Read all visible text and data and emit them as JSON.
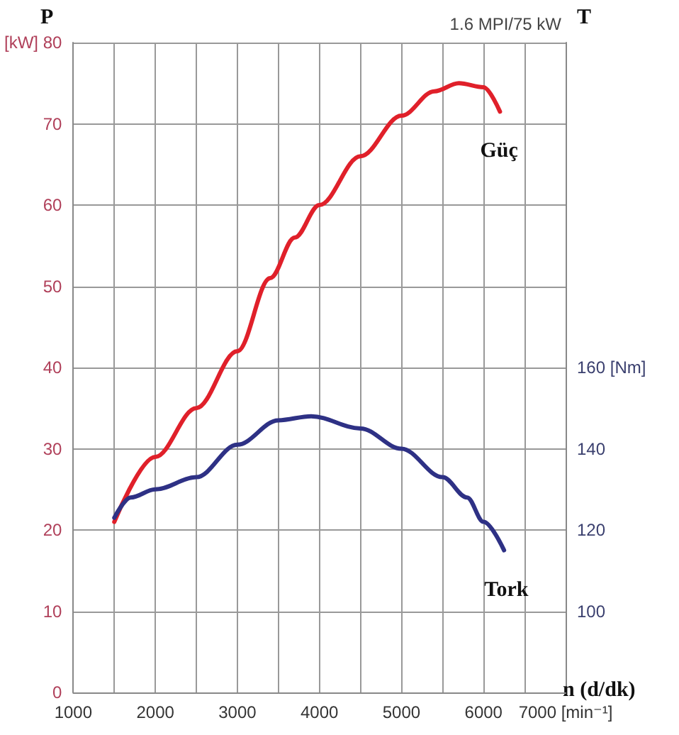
{
  "chart_data": {
    "type": "line",
    "title": "1.6 MPI/75 kW",
    "xlabel": "n (d/dk)",
    "ylabel": "P",
    "y2label": "T",
    "xlim": [
      1000,
      7000
    ],
    "xticks": [
      1000,
      {
        "value": 1500,
        "label": null
      },
      2000,
      {
        "value": 2500,
        "label": null
      },
      3000,
      {
        "value": 3500,
        "label": null
      },
      4000,
      {
        "value": 4500,
        "label": null
      },
      5000,
      {
        "value": 5500,
        "label": null
      },
      6000,
      {
        "value": 6500,
        "label": null
      },
      {
        "value": 7000,
        "label": "7000 [min⁻¹]"
      }
    ],
    "ylim": [
      0,
      80
    ],
    "yticks": [
      0,
      10,
      20,
      30,
      40,
      50,
      60,
      70,
      {
        "value": 80,
        "label": "[kW] 80"
      }
    ],
    "y2lim": [
      80,
      240
    ],
    "y2ticks": [
      100,
      120,
      140,
      {
        "value": 160,
        "label": "160 [Nm]"
      }
    ],
    "grid": true,
    "legend": false,
    "marker": "none",
    "line_style": "solid",
    "series": [
      {
        "name": "Güç",
        "color": "#e0202a",
        "x": [
          1500,
          2000,
          2500,
          3000,
          3400,
          3700,
          4000,
          4500,
          5000,
          5400,
          5700,
          6000,
          6200
        ],
        "values": [
          21,
          29,
          35,
          42,
          51,
          56,
          60,
          66,
          71,
          74,
          75,
          74.5,
          71.5
        ]
      },
      {
        "name": "Tork",
        "color": "#2e3185",
        "axis": "y2",
        "x": [
          1500,
          1700,
          2000,
          2500,
          3000,
          3500,
          3900,
          4500,
          5000,
          5500,
          5800,
          6000,
          6250
        ],
        "values": [
          123,
          128,
          130,
          133,
          141,
          147,
          148,
          145,
          140,
          133,
          128,
          122,
          115
        ]
      }
    ]
  }
}
